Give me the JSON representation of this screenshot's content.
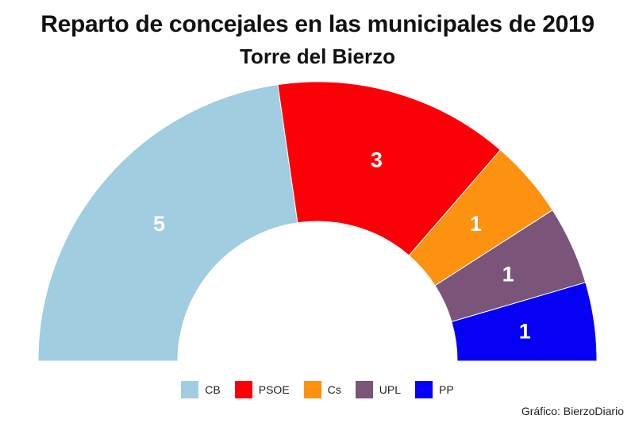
{
  "chart_data": {
    "type": "pie",
    "subtype": "half-donut",
    "title": "Reparto de concejales en las municipales de 2019",
    "subtitle": "Torre del Bierzo",
    "categories": [
      "CB",
      "PSOE",
      "Cs",
      "UPL",
      "PP"
    ],
    "values": [
      5,
      3,
      1,
      1,
      1
    ],
    "colors": [
      "#a0cde0",
      "#fb0006",
      "#fc9210",
      "#7a5479",
      "#0600f5"
    ],
    "legend_position": "bottom",
    "source": "Gráfico: BierzoDiario"
  }
}
